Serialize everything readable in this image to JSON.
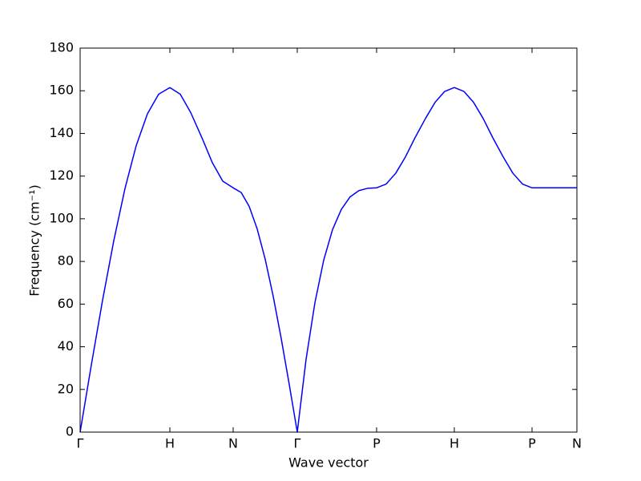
{
  "chart_data": {
    "type": "line",
    "xlabel": "Wave vector",
    "ylabel": "Frequency (cm⁻¹)",
    "x": [
      0,
      14,
      28,
      42,
      56,
      70,
      84,
      98,
      112,
      125,
      138,
      152,
      165,
      178,
      191,
      201,
      211,
      221,
      231,
      241,
      251,
      261,
      271,
      282,
      293,
      304,
      315,
      326,
      337,
      348,
      359,
      370,
      382,
      394,
      406,
      418,
      431,
      443,
      455,
      467,
      479,
      491,
      503,
      515,
      528,
      540,
      552,
      564,
      592,
      620
    ],
    "series": [
      {
        "color": "#0000ff",
        "values": [
          0,
          31.5,
          61.8,
          89.7,
          114.2,
          134.3,
          149.2,
          158.4,
          161.5,
          158.4,
          149.8,
          138,
          126.3,
          117.6,
          114.5,
          112.3,
          105.8,
          95.2,
          81.0,
          63.6,
          43.8,
          22.3,
          0,
          34.1,
          60.6,
          80.6,
          94.9,
          104.4,
          110.3,
          113.2,
          114.3,
          114.5,
          116.3,
          121.4,
          129.0,
          138,
          147.0,
          154.6,
          159.7,
          161.5,
          159.7,
          154.6,
          147.0,
          138,
          129.0,
          121.4,
          116.3,
          114.5,
          114.5,
          114.5
        ]
      }
    ],
    "xlim": [
      0,
      620
    ],
    "xticks": [
      {
        "value": 0,
        "label": "Γ"
      },
      {
        "value": 112,
        "label": "H"
      },
      {
        "value": 191,
        "label": "N"
      },
      {
        "value": 271,
        "label": "Γ"
      },
      {
        "value": 370,
        "label": "P"
      },
      {
        "value": 467,
        "label": "H"
      },
      {
        "value": 564,
        "label": "P"
      },
      {
        "value": 620,
        "label": "N"
      }
    ],
    "ylim": [
      0,
      180
    ],
    "yticks": [
      0,
      20,
      40,
      60,
      80,
      100,
      120,
      140,
      160,
      180
    ]
  }
}
